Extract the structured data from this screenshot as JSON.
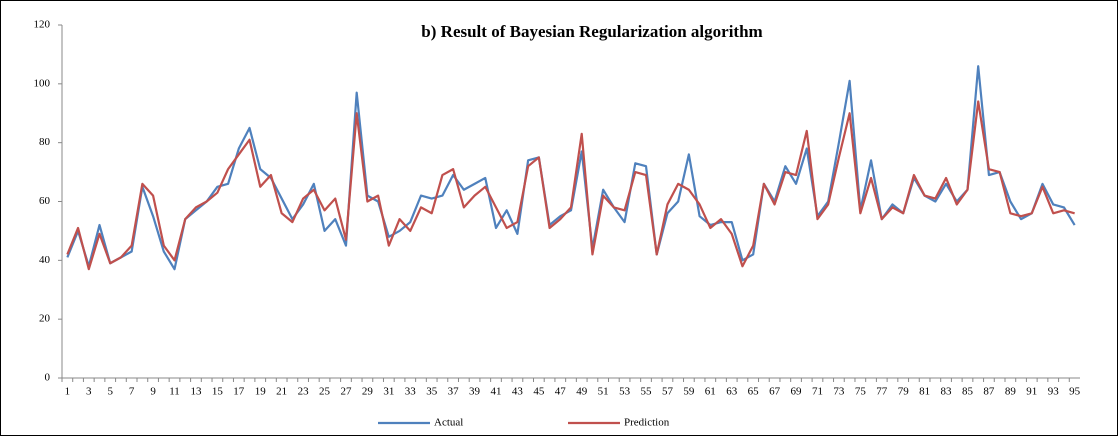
{
  "chart_data": {
    "type": "line",
    "title": "b) Result of Bayesian Regularization algorithm",
    "categories": [
      1,
      null,
      3,
      null,
      5,
      null,
      7,
      null,
      9,
      null,
      11,
      null,
      13,
      null,
      15,
      null,
      17,
      null,
      19,
      null,
      21,
      null,
      23,
      null,
      25,
      null,
      27,
      null,
      29,
      null,
      31,
      null,
      33,
      null,
      35,
      null,
      37,
      null,
      39,
      null,
      41,
      null,
      43,
      null,
      45,
      null,
      47,
      null,
      49,
      null,
      51,
      null,
      53,
      null,
      55,
      null,
      57,
      null,
      59,
      null,
      61,
      null,
      63,
      null,
      65,
      null,
      67,
      null,
      69,
      null,
      71,
      null,
      73,
      null,
      75,
      null,
      77,
      null,
      79,
      null,
      81,
      null,
      83,
      null,
      85,
      null,
      87,
      null,
      89,
      null,
      91,
      null,
      93,
      null,
      95
    ],
    "series": [
      {
        "name": "Actual",
        "color": "#4f81bd",
        "values": [
          41,
          50,
          38,
          52,
          39,
          41,
          43,
          65,
          55,
          43,
          37,
          54,
          57,
          60,
          65,
          66,
          78,
          85,
          71,
          68,
          61,
          54,
          59,
          66,
          50,
          54,
          45,
          97,
          62,
          60,
          48,
          50,
          53,
          62,
          61,
          62,
          69,
          64,
          66,
          68,
          51,
          57,
          49,
          74,
          75,
          52,
          55,
          57,
          77,
          44,
          64,
          58,
          53,
          73,
          72,
          42,
          56,
          60,
          76,
          55,
          52,
          53,
          53,
          40,
          42,
          66,
          60,
          72,
          66,
          78,
          55,
          60,
          80,
          101,
          57,
          74,
          54,
          59,
          56,
          68,
          62,
          60,
          66,
          60,
          64,
          106,
          69,
          70,
          60,
          54,
          56,
          66,
          59,
          58,
          52
        ]
      },
      {
        "name": "Prediction",
        "color": "#c0504d",
        "values": [
          42,
          51,
          37,
          49,
          39,
          41,
          45,
          66,
          62,
          45,
          40,
          54,
          58,
          60,
          63,
          71,
          76,
          81,
          65,
          69,
          56,
          53,
          61,
          64,
          57,
          61,
          47,
          90,
          60,
          62,
          45,
          54,
          50,
          58,
          56,
          69,
          71,
          58,
          62,
          65,
          58,
          51,
          53,
          72,
          75,
          51,
          54,
          58,
          83,
          42,
          62,
          58,
          57,
          70,
          69,
          42,
          59,
          66,
          64,
          59,
          51,
          54,
          49,
          38,
          45,
          66,
          59,
          70,
          69,
          84,
          54,
          59,
          75,
          90,
          56,
          68,
          54,
          58,
          56,
          69,
          62,
          61,
          68,
          59,
          64,
          94,
          71,
          70,
          56,
          55,
          56,
          65,
          56,
          57,
          56
        ]
      }
    ],
    "ylim": [
      0,
      120
    ],
    "yticks": [
      0,
      20,
      40,
      60,
      80,
      100,
      120
    ],
    "legend": "bottom"
  }
}
